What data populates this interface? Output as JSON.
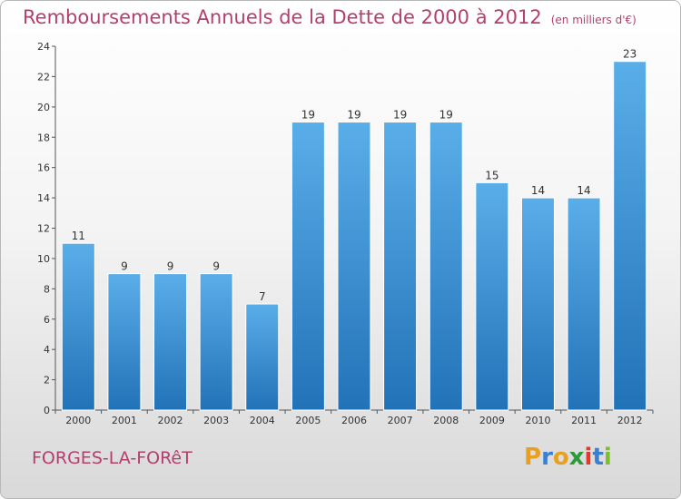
{
  "title": "Remboursements Annuels de la Dette de 2000 à 2012",
  "unit": "(en milliers d'€)",
  "town": "FORGES-LA-FORêT",
  "logo": {
    "letters": [
      "P",
      "r",
      "o",
      "x",
      "i",
      "t",
      "i"
    ],
    "colors": [
      "#e8a020",
      "#3a7fd0",
      "#e8a020",
      "#2d9a3a",
      "#e03a2a",
      "#3a7fd0",
      "#7bbf2a"
    ]
  },
  "colors": {
    "bar": "#3a90d4",
    "title": "#b43f6e"
  },
  "chart_data": {
    "type": "bar",
    "categories": [
      "2000",
      "2001",
      "2002",
      "2003",
      "2004",
      "2005",
      "2006",
      "2007",
      "2008",
      "2009",
      "2010",
      "2011",
      "2012"
    ],
    "values": [
      11,
      9,
      9,
      9,
      7,
      19,
      19,
      19,
      19,
      15,
      14,
      14,
      23
    ],
    "ylim": [
      0,
      24
    ],
    "yticks": [
      0,
      2,
      4,
      6,
      8,
      10,
      12,
      14,
      16,
      18,
      20,
      22,
      24
    ],
    "grid": false,
    "legend": "none"
  }
}
